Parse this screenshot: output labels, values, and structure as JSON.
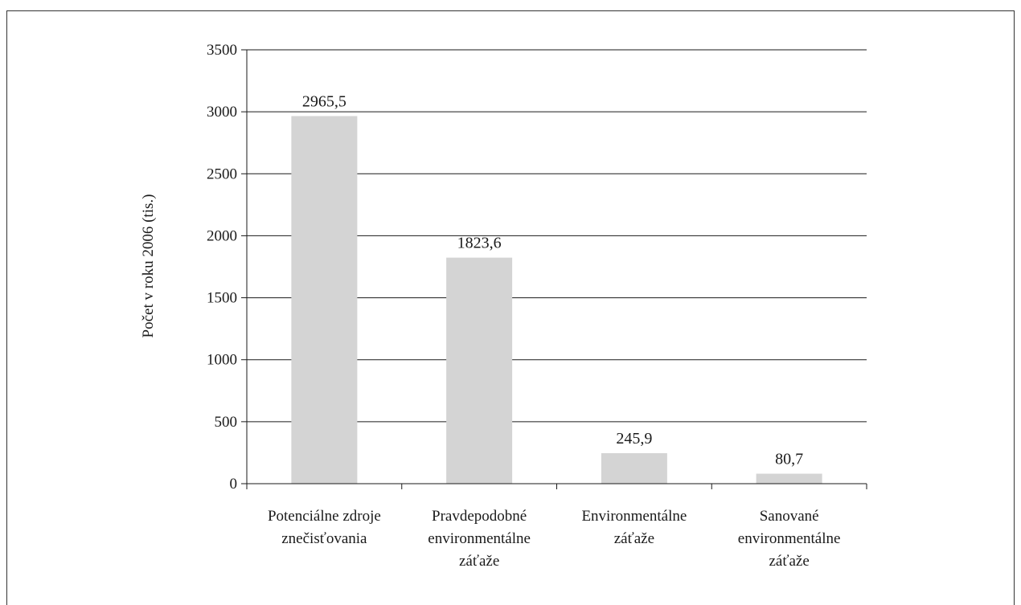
{
  "chart_data": {
    "type": "bar",
    "categories": [
      [
        "Potenciálne zdroje",
        "znečisťovania"
      ],
      [
        "Pravdepodobné",
        "environmentálne",
        "záťaže"
      ],
      [
        "Environmentálne",
        "záťaže"
      ],
      [
        "Sanované",
        "environmentálne",
        "záťaže"
      ]
    ],
    "values": [
      2965.5,
      1823.6,
      245.9,
      80.7
    ],
    "value_labels": [
      "2965,5",
      "1823,6",
      "245,9",
      "80,7"
    ],
    "ylabel": "Počet v roku 2006 (tis.)",
    "ylim": [
      0,
      3500
    ],
    "yticks": [
      0,
      500,
      1000,
      1500,
      2000,
      2500,
      3000,
      3500
    ],
    "grid": true,
    "legend": "none",
    "colors": {
      "bar": "#d4d4d4",
      "grid": "#1a1a1a",
      "axis": "#1a1a1a"
    }
  }
}
